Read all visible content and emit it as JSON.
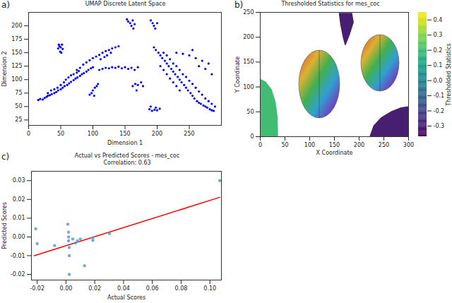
{
  "chart_data": [
    {
      "panel_label": "a)",
      "type": "scatter",
      "title": "UMAP Discrete Latent Space",
      "x_label": "Dimension 1",
      "y_label": "Dimension 2",
      "color": "#0000ff",
      "marker": "circle",
      "xlim": [
        0,
        300
      ],
      "ylim": [
        15,
        225
      ],
      "xticks": [
        0,
        50,
        100,
        150,
        200,
        250
      ],
      "yticks": [
        25,
        50,
        75,
        100,
        125,
        150,
        175,
        200
      ],
      "points": [
        [
          15,
          62
        ],
        [
          18,
          64
        ],
        [
          22,
          63
        ],
        [
          25,
          66
        ],
        [
          28,
          68
        ],
        [
          30,
          70
        ],
        [
          33,
          71
        ],
        [
          36,
          73
        ],
        [
          40,
          75
        ],
        [
          43,
          77
        ],
        [
          46,
          80
        ],
        [
          50,
          82
        ],
        [
          53,
          85
        ],
        [
          56,
          88
        ],
        [
          60,
          90
        ],
        [
          63,
          93
        ],
        [
          66,
          96
        ],
        [
          70,
          99
        ],
        [
          73,
          102
        ],
        [
          76,
          104
        ],
        [
          80,
          107
        ],
        [
          83,
          110
        ],
        [
          86,
          112
        ],
        [
          90,
          115
        ],
        [
          93,
          118
        ],
        [
          97,
          121
        ],
        [
          100,
          123
        ],
        [
          30,
          75
        ],
        [
          35,
          80
        ],
        [
          40,
          82
        ],
        [
          45,
          85
        ],
        [
          50,
          90
        ],
        [
          55,
          95
        ],
        [
          58,
          100
        ],
        [
          62,
          104
        ],
        [
          66,
          108
        ],
        [
          70,
          110
        ],
        [
          75,
          113
        ],
        [
          78,
          116
        ],
        [
          46,
          158
        ],
        [
          48,
          162
        ],
        [
          50,
          160
        ],
        [
          52,
          165
        ],
        [
          49,
          152
        ],
        [
          51,
          150
        ],
        [
          53,
          157
        ],
        [
          47,
          165
        ],
        [
          75,
          118
        ],
        [
          80,
          122
        ],
        [
          85,
          128
        ],
        [
          90,
          132
        ],
        [
          95,
          136
        ],
        [
          100,
          140
        ],
        [
          105,
          143
        ],
        [
          110,
          146
        ],
        [
          115,
          150
        ],
        [
          120,
          153
        ],
        [
          125,
          155
        ],
        [
          130,
          158
        ],
        [
          135,
          160
        ],
        [
          140,
          162
        ],
        [
          122,
          145
        ],
        [
          128,
          150
        ],
        [
          112,
          138
        ],
        [
          118,
          142
        ],
        [
          95,
          72
        ],
        [
          98,
          75
        ],
        [
          100,
          80
        ],
        [
          103,
          85
        ],
        [
          106,
          88
        ],
        [
          108,
          92
        ],
        [
          102,
          70
        ],
        [
          110,
          118
        ],
        [
          115,
          120
        ],
        [
          120,
          122
        ],
        [
          125,
          121
        ],
        [
          130,
          123
        ],
        [
          135,
          122
        ],
        [
          140,
          124
        ],
        [
          145,
          121
        ],
        [
          150,
          123
        ],
        [
          155,
          120
        ],
        [
          160,
          122
        ],
        [
          165,
          118
        ],
        [
          170,
          123
        ],
        [
          153,
          212
        ],
        [
          155,
          208
        ],
        [
          158,
          205
        ],
        [
          160,
          200
        ],
        [
          162,
          210
        ],
        [
          165,
          203
        ],
        [
          163,
          195
        ],
        [
          190,
          210
        ],
        [
          193,
          205
        ],
        [
          195,
          200
        ],
        [
          197,
          195
        ],
        [
          200,
          205
        ],
        [
          162,
          88
        ],
        [
          166,
          92
        ],
        [
          170,
          90
        ],
        [
          175,
          95
        ],
        [
          178,
          88
        ],
        [
          168,
          80
        ],
        [
          188,
          45
        ],
        [
          192,
          42
        ],
        [
          196,
          44
        ],
        [
          200,
          43
        ],
        [
          204,
          46
        ],
        [
          198,
          48
        ],
        [
          190,
          50
        ],
        [
          195,
          160
        ],
        [
          198,
          155
        ],
        [
          202,
          150
        ],
        [
          205,
          145
        ],
        [
          208,
          140
        ],
        [
          212,
          135
        ],
        [
          215,
          130
        ],
        [
          218,
          125
        ],
        [
          222,
          120
        ],
        [
          225,
          115
        ],
        [
          228,
          110
        ],
        [
          232,
          105
        ],
        [
          235,
          100
        ],
        [
          238,
          95
        ],
        [
          242,
          90
        ],
        [
          245,
          85
        ],
        [
          248,
          80
        ],
        [
          252,
          75
        ],
        [
          255,
          70
        ],
        [
          258,
          65
        ],
        [
          262,
          60
        ],
        [
          265,
          57
        ],
        [
          268,
          55
        ],
        [
          272,
          52
        ],
        [
          275,
          50
        ],
        [
          278,
          48
        ],
        [
          282,
          45
        ],
        [
          285,
          43
        ],
        [
          288,
          42
        ],
        [
          210,
          150
        ],
        [
          215,
          145
        ],
        [
          220,
          138
        ],
        [
          225,
          130
        ],
        [
          230,
          125
        ],
        [
          235,
          118
        ],
        [
          240,
          110
        ],
        [
          245,
          105
        ],
        [
          250,
          98
        ],
        [
          255,
          92
        ],
        [
          260,
          85
        ],
        [
          265,
          78
        ],
        [
          270,
          72
        ],
        [
          275,
          65
        ],
        [
          280,
          60
        ],
        [
          285,
          55
        ],
        [
          290,
          50
        ],
        [
          205,
          125
        ],
        [
          210,
          118
        ],
        [
          215,
          110
        ],
        [
          220,
          102
        ],
        [
          225,
          95
        ],
        [
          230,
          88
        ],
        [
          235,
          80
        ],
        [
          230,
          150
        ],
        [
          240,
          148
        ],
        [
          250,
          145
        ],
        [
          260,
          140
        ],
        [
          270,
          135
        ],
        [
          280,
          130
        ],
        [
          255,
          155
        ],
        [
          265,
          125
        ],
        [
          275,
          120
        ],
        [
          285,
          110
        ]
      ]
    },
    {
      "panel_label": "b)",
      "type": "region_map",
      "title": "Thresholded Statistics for mes_coc",
      "x_label": "X Coordinate",
      "y_label": "Y Coordinate",
      "xlim": [
        0,
        300
      ],
      "ylim": [
        0,
        250
      ],
      "xticks": [
        0,
        50,
        100,
        150,
        200,
        250,
        300
      ],
      "yticks": [
        0,
        50,
        100,
        150,
        200,
        250
      ],
      "colorbar": {
        "label": "Thresholded Statistics",
        "range": [
          -0.37,
          0.45
        ],
        "ticks": [
          -0.3,
          -0.2,
          -0.1,
          {
            "value": 0,
            "label": "0.0"
          },
          0.1,
          0.2,
          0.3,
          0.4
        ]
      },
      "regions": [
        {
          "value": 0.2,
          "points": [
            [
              0,
              0
            ],
            [
              35,
              0
            ],
            [
              34,
              40
            ],
            [
              30,
              70
            ],
            [
              22,
              95
            ],
            [
              10,
              110
            ],
            [
              0,
              115
            ]
          ]
        },
        {
          "value": -0.3,
          "points": [
            [
              160,
              248
            ],
            [
              185,
              248
            ],
            [
              188,
              230
            ],
            [
              180,
              205
            ],
            [
              172,
              185
            ],
            [
              168,
              200
            ],
            [
              163,
              225
            ]
          ]
        },
        {
          "value": -0.3,
          "points": [
            [
              222,
              0
            ],
            [
              300,
              0
            ],
            [
              300,
              60
            ],
            [
              285,
              58
            ],
            [
              265,
              50
            ],
            [
              245,
              38
            ],
            [
              230,
              22
            ]
          ]
        }
      ]
    },
    {
      "panel_label": "c)",
      "type": "scatter",
      "title": "Actual vs Predicted Scores - mes_coc",
      "subtitle": "Correlation: 0.63",
      "x_label": "Actual Scores",
      "y_label": "Predicted Scores",
      "color": "#5b9bd5",
      "marker": "circle",
      "xlim": [
        -0.024,
        0.108
      ],
      "ylim": [
        -0.023,
        0.035
      ],
      "xticks": [
        {
          "value": -0.02,
          "label": "-0.02"
        },
        {
          "value": 0,
          "label": "0.00"
        },
        {
          "value": 0.02,
          "label": "0.02"
        },
        {
          "value": 0.04,
          "label": "0.04"
        },
        {
          "value": 0.06,
          "label": "0.06"
        },
        {
          "value": 0.08,
          "label": "0.08"
        },
        {
          "value": 0.1,
          "label": "0.10"
        }
      ],
      "yticks": [
        {
          "value": -0.02,
          "label": "-0.02"
        },
        {
          "value": -0.01,
          "label": "-0.01"
        },
        {
          "value": 0,
          "label": "0.00"
        },
        {
          "value": 0.01,
          "label": "0.01"
        },
        {
          "value": 0.02,
          "label": "0.02"
        },
        {
          "value": 0.03,
          "label": "0.03"
        }
      ],
      "x": [
        -0.021,
        -0.02,
        -0.0079,
        0.0013,
        0.0018,
        0.0018,
        0.0018,
        0.0023,
        0.0023,
        0.0023,
        0.0047,
        0.0066,
        0.008,
        0.01,
        0.0129,
        0.0187,
        0.0187,
        0.0303,
        0.1068
      ],
      "y": [
        0.0043,
        -0.0036,
        -0.0046,
        0.0068,
        0.0025,
        0.0,
        -0.0021,
        -0.0057,
        -0.01,
        -0.02,
        -0.0011,
        -0.0032,
        -0.0021,
        -0.0011,
        -0.0154,
        -0.0004,
        -0.0018,
        0.0018,
        0.03
      ],
      "fit_line": {
        "x": [
          -0.022,
          0.1068
        ],
        "y": [
          -0.01,
          0.0211
        ],
        "color": "#ff0000",
        "line_style": "solid"
      }
    }
  ]
}
